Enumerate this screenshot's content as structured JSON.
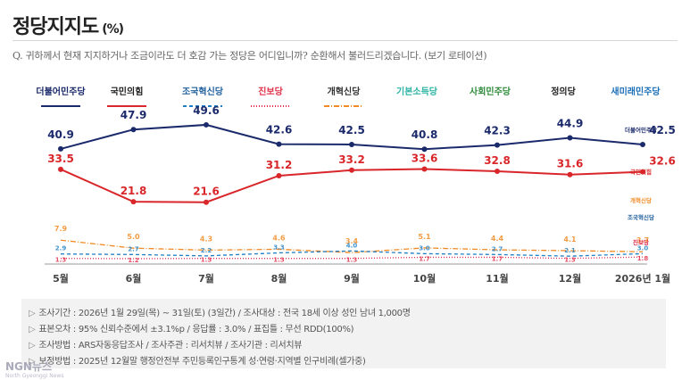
{
  "title": "정당지지도",
  "title_unit": "(%)",
  "question": "Q. 귀하께서 현재 지지하거나 조금이라도 더 호감 가는 정당은 어디입니까? 순환해서 불러드리겠습니다. (보기 로테이션)",
  "notes": [
    "조사기간 : 2026년 1월 29일(목) ~ 31일(토) (3일간) / 조사대상 : 전국 18세 이상 성인 남녀 1,000명",
    "표본오차 : 95% 신뢰수준에서 ±3.1%p / 응답률 : 3.0% / 표집틀 : 무선 RDD(100%)",
    "조사방법 : ARS자동응답조사 / 조사주관 : 리서치뷰 / 조사기관 : 리서치뷰",
    "보정방법 : 2025년 12월말 행정안전부 주민등록인구통계 성·연령·지역별 인구비례(셀가중)"
  ],
  "note_bullet": "▷",
  "watermark": "NGN뉴스",
  "watermark_sub": "North Gyeonggi News",
  "chart_data": {
    "type": "line",
    "categories": [
      "5월",
      "6월",
      "7월",
      "8월",
      "9월",
      "10월",
      "11월",
      "12월",
      "2026년 1월"
    ],
    "legend": [
      "더불어민주당",
      "국민의힘",
      "조국혁신당",
      "진보당",
      "개혁신당",
      "기본소득당",
      "사회민주당",
      "정의당",
      "새미래민주당"
    ],
    "end_labels": [
      "더불어민주당",
      "국민의힘",
      "개혁신당",
      "조국혁신당",
      "진보당"
    ],
    "series": [
      {
        "name": "더불어민주당",
        "color": "#1b2a6b",
        "style": "solid",
        "values": [
          40.9,
          47.9,
          49.6,
          42.6,
          42.5,
          40.8,
          42.3,
          44.9,
          42.5
        ],
        "labels": [
          "40.9",
          "47.9",
          "49.6",
          "42.6",
          "42.5",
          "40.8",
          "42.3",
          "44.9",
          "42.5"
        ]
      },
      {
        "name": "국민의힘",
        "color": "#d9262a",
        "style": "solid",
        "values": [
          33.5,
          21.8,
          21.6,
          31.2,
          33.2,
          33.6,
          32.8,
          31.6,
          32.6
        ],
        "labels": [
          "33.5",
          "21.8",
          "21.6",
          "31.2",
          "33.2",
          "33.6",
          "32.8",
          "31.6",
          "32.6"
        ]
      },
      {
        "name": "개혁신당",
        "color": "#f08a24",
        "style": "dashdot",
        "values": [
          7.9,
          5.0,
          4.3,
          4.6,
          3.4,
          5.1,
          4.4,
          4.1,
          3.7
        ],
        "labels": [
          "7.9",
          "5.0",
          "4.3",
          "4.6",
          "3.4",
          "5.1",
          "4.4",
          "4.1",
          "3.7"
        ]
      },
      {
        "name": "조국혁신당",
        "color": "#1f7fc4",
        "style": "dash",
        "values": [
          2.9,
          2.7,
          2.2,
          3.3,
          4.0,
          3.0,
          2.7,
          2.1,
          3.0
        ],
        "labels": [
          "2.9",
          "2.7",
          "2.2",
          "3.3",
          "4.0",
          "3.0",
          "2.7",
          "2.1",
          "3.0"
        ]
      },
      {
        "name": "진보당",
        "color": "#e0314b",
        "style": "dot",
        "values": [
          1.3,
          1.2,
          1.3,
          1.3,
          1.3,
          1.7,
          1.7,
          1.3,
          1.8
        ],
        "labels": [
          "1.3",
          "1.2",
          "1.3",
          "1.3",
          "1.3",
          "1.7",
          "1.7",
          "1.3",
          "1.8"
        ]
      }
    ],
    "ylim": [
      0,
      55
    ],
    "grid": false,
    "legend_position": "top"
  }
}
